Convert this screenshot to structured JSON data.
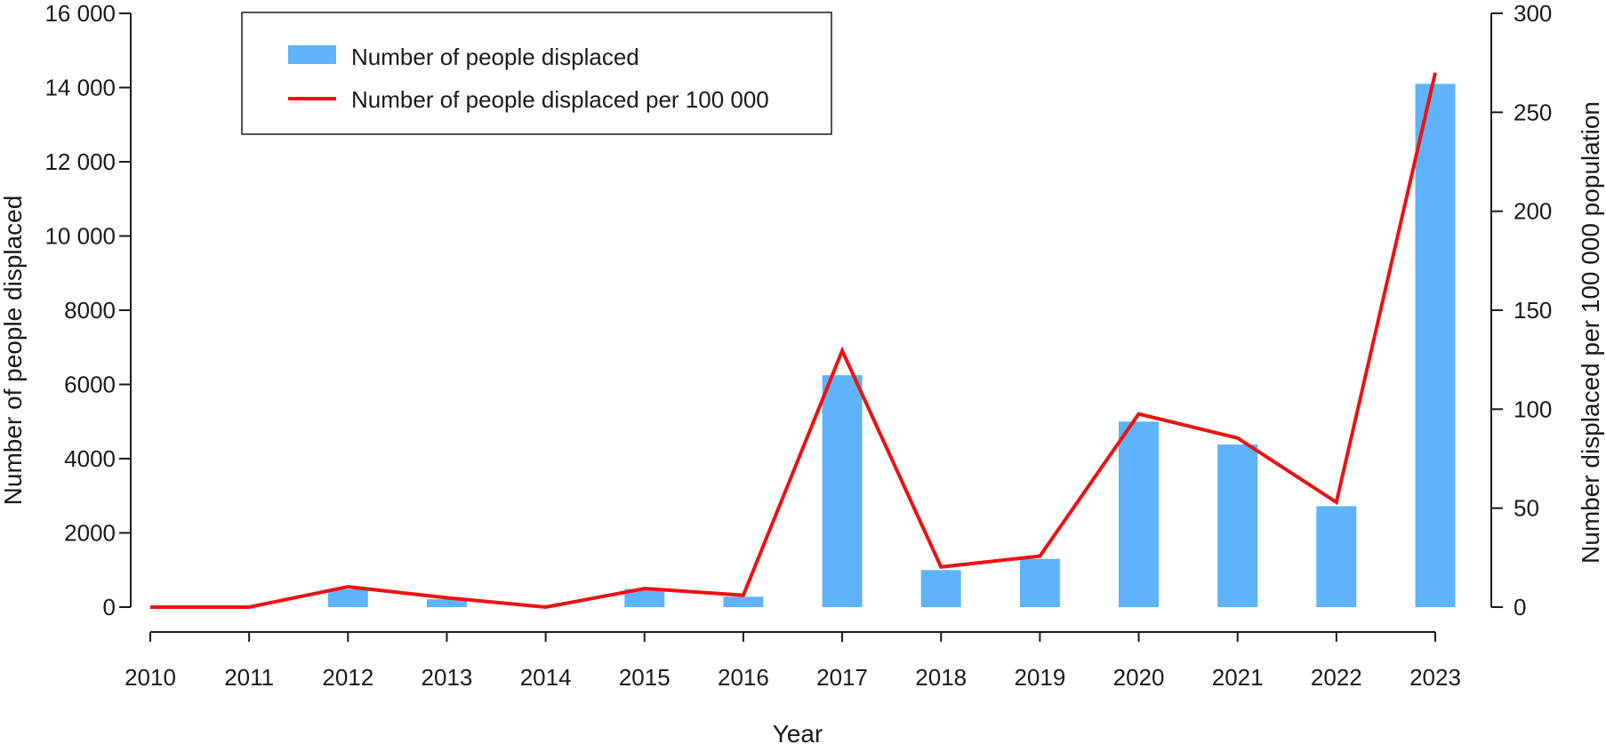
{
  "chart_data": {
    "type": "bar",
    "title": "",
    "categories": [
      "2010",
      "2011",
      "2012",
      "2013",
      "2014",
      "2015",
      "2016",
      "2017",
      "2018",
      "2019",
      "2020",
      "2021",
      "2022",
      "2023"
    ],
    "series": [
      {
        "name": "Number of people displaced",
        "kind": "bar",
        "axis": "left",
        "color": "#5eb3fa",
        "values": [
          0,
          0,
          480,
          210,
          0,
          490,
          280,
          6250,
          1000,
          1300,
          5000,
          4380,
          2720,
          14100
        ]
      },
      {
        "name": "Number of people displaced per 100 000",
        "kind": "line",
        "axis": "right",
        "color": "#ee1111",
        "values": [
          0,
          0,
          10.3,
          4.7,
          0,
          9.4,
          6.0,
          129.5,
          20.3,
          25.8,
          97.6,
          85.4,
          53.0,
          270.0
        ]
      }
    ],
    "xlabel": "Year",
    "ylabel": "Number of people displaced",
    "y2label": "Number displaced per 100 000 population",
    "ylim": [
      0,
      16000
    ],
    "y2lim": [
      0,
      300
    ],
    "yticks": [
      0,
      2000,
      4000,
      6000,
      8000,
      10000,
      12000,
      14000,
      16000
    ],
    "ytick_labels": [
      "0",
      "2000",
      "4000",
      "6000",
      "8000",
      "10 000",
      "12 000",
      "14 000",
      "16 000"
    ],
    "y2ticks": [
      0,
      50,
      100,
      150,
      200,
      250,
      300
    ],
    "y2tick_labels": [
      "0",
      "50",
      "100",
      "150",
      "200",
      "250",
      "300"
    ],
    "legend": {
      "placement": "top-left",
      "entries": [
        "Number of people displaced",
        "Number of people displaced per 100 000"
      ]
    },
    "grid": false
  }
}
